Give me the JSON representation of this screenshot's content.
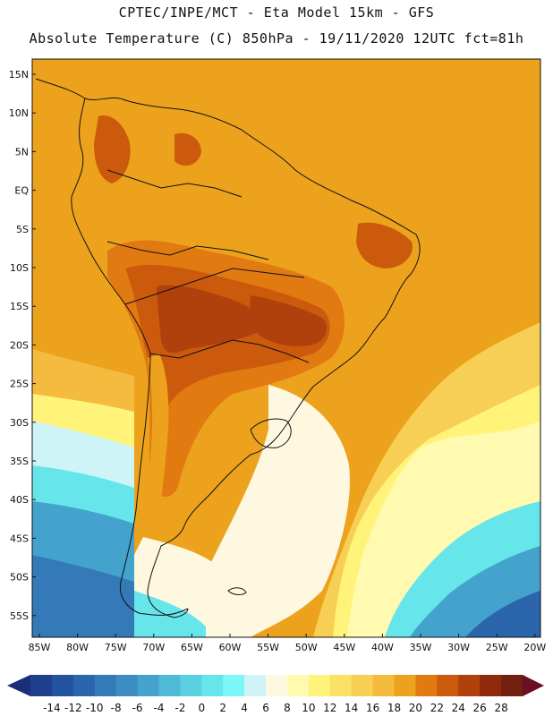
{
  "title_line1": "CPTEC/INPE/MCT -  Eta Model 15km - GFS",
  "title_line2": "Absolute Temperature (C) 850hPa - 19/11/2020 12UTC fct=81h",
  "lat_labels": [
    "15N",
    "10N",
    "5N",
    "EQ",
    "5S",
    "10S",
    "15S",
    "20S",
    "25S",
    "30S",
    "35S",
    "40S",
    "45S",
    "50S",
    "55S"
  ],
  "lon_labels": [
    "85W",
    "80W",
    "75W",
    "70W",
    "65W",
    "60W",
    "55W",
    "50W",
    "45W",
    "40W",
    "35W",
    "30W",
    "25W",
    "20W"
  ],
  "colorbar": {
    "ticks": [
      "-14",
      "-12",
      "-10",
      "-8",
      "-6",
      "-4",
      "-2",
      "0",
      "2",
      "4",
      "6",
      "8",
      "10",
      "12",
      "14",
      "16",
      "18",
      "20",
      "22",
      "24",
      "26",
      "28"
    ],
    "colors": [
      "#1f3f8c",
      "#23529e",
      "#2b66ad",
      "#3479b8",
      "#3b8dc2",
      "#44a3cc",
      "#4ebad6",
      "#5ad0e0",
      "#66e5ea",
      "#7ef7f7",
      "#cff4f7",
      "#fff8e1",
      "#fffab0",
      "#fff37a",
      "#fbe166",
      "#f8cf55",
      "#f5bb3f",
      "#eda21d",
      "#e27a12",
      "#cc5a0d",
      "#b0410d",
      "#8f2a0c",
      "#732010"
    ],
    "left_cap_color": "#1a2f7a",
    "right_cap_color": "#6a1020"
  }
}
